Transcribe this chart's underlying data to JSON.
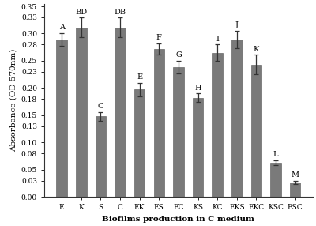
{
  "categories": [
    "E",
    "K",
    "S",
    "C",
    "EK",
    "ES",
    "EC",
    "KS",
    "KC",
    "EKS",
    "EKC",
    "KSC",
    "ESC"
  ],
  "values": [
    0.289,
    0.311,
    0.148,
    0.311,
    0.197,
    0.272,
    0.238,
    0.182,
    0.265,
    0.289,
    0.243,
    0.063,
    0.027
  ],
  "errors": [
    0.012,
    0.018,
    0.008,
    0.018,
    0.012,
    0.01,
    0.012,
    0.008,
    0.015,
    0.016,
    0.018,
    0.004,
    0.003
  ],
  "labels": [
    "A",
    "BD",
    "C",
    "DB",
    "E",
    "F",
    "G",
    "H",
    "I",
    "J",
    "K",
    "L",
    "M"
  ],
  "bar_color": "#7a7a7a",
  "edge_color": "#555555",
  "xlabel": "Biofilms production in C medium",
  "ylabel": "Absorbance (OD 570nm)",
  "ylim": [
    0.0,
    0.355
  ],
  "yticks": [
    0.0,
    0.03,
    0.05,
    0.08,
    0.1,
    0.13,
    0.15,
    0.18,
    0.2,
    0.23,
    0.25,
    0.28,
    0.3,
    0.33,
    0.35
  ],
  "background_color": "#ffffff",
  "label_fontsize": 7,
  "axis_fontsize": 7.5,
  "tick_fontsize": 6.5,
  "bar_width": 0.55
}
